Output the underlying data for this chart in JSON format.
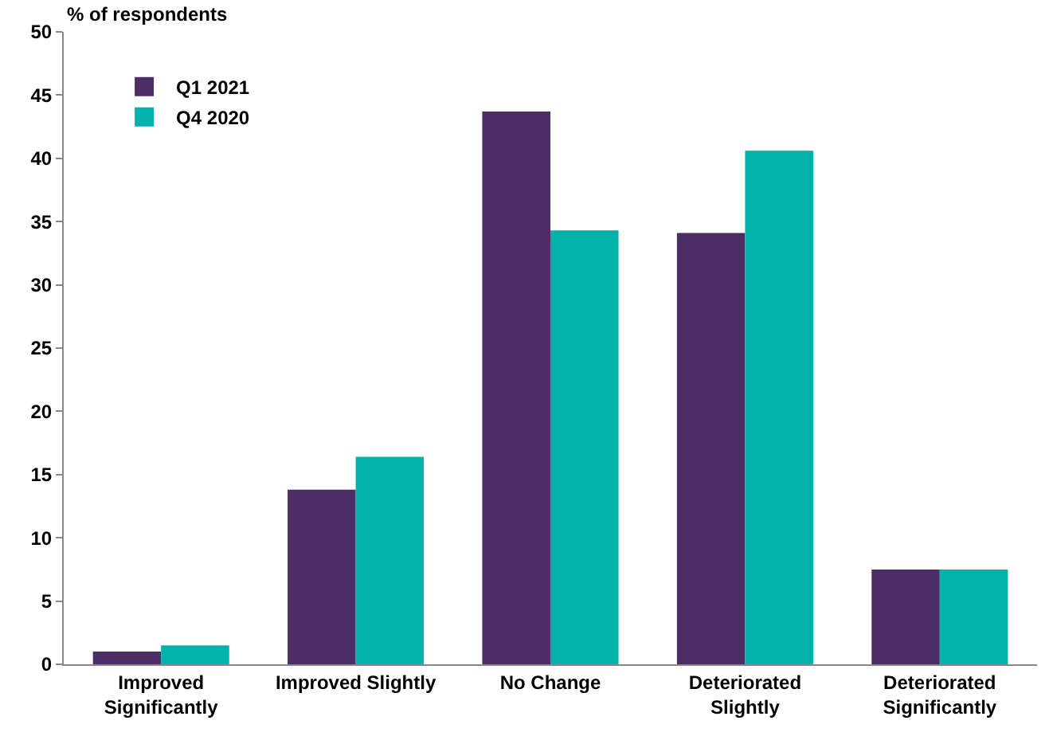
{
  "chart_data": {
    "type": "bar",
    "ylabel": "% of respondents",
    "categories": [
      "Improved Significantly",
      "Improved Slightly",
      "No Change",
      "Deteriorated Slightly",
      "Deteriorated Significantly"
    ],
    "series": [
      {
        "name": "Q1 2021",
        "color": "#4b2e63",
        "values": [
          1.0,
          13.8,
          43.7,
          34.1,
          7.5
        ]
      },
      {
        "name": "Q4 2020",
        "color": "#00b2a9",
        "values": [
          1.5,
          16.4,
          34.3,
          40.6,
          7.5
        ]
      }
    ],
    "ylim": [
      0,
      50
    ],
    "yticks": [
      0,
      5,
      10,
      15,
      20,
      25,
      30,
      35,
      40,
      45,
      50
    ],
    "grid": false,
    "legend": "top left"
  }
}
